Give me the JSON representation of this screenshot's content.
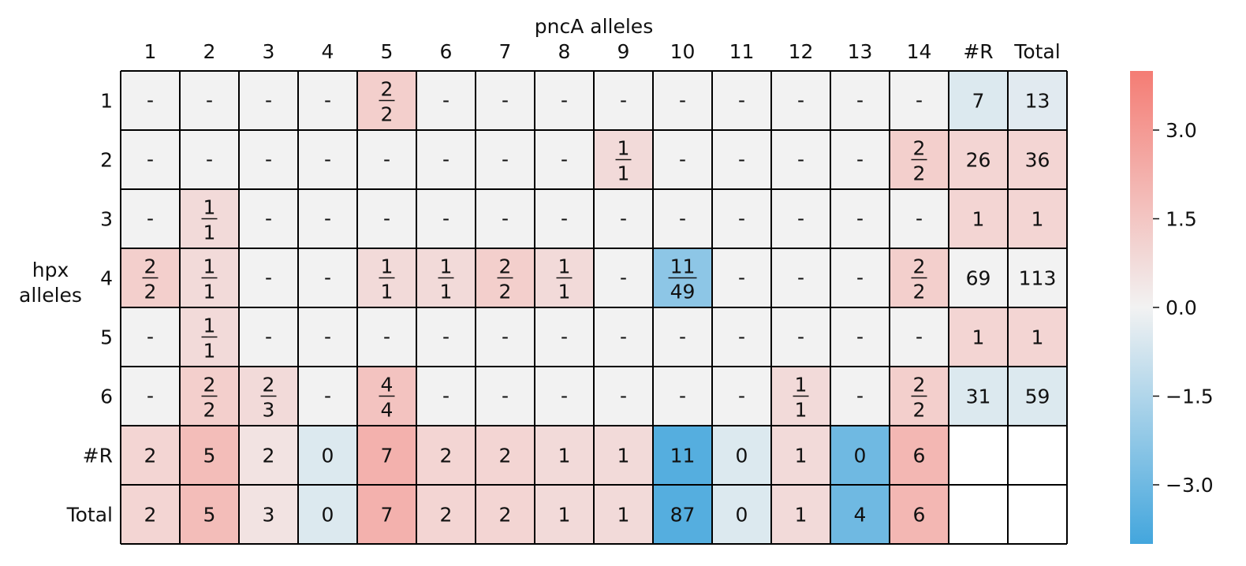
{
  "chart_data": {
    "type": "heatmap",
    "title": "",
    "xlabel": "pncA alleles",
    "ylabel": "hpx\nalleles",
    "col_labels": [
      "1",
      "2",
      "3",
      "4",
      "5",
      "6",
      "7",
      "8",
      "9",
      "10",
      "11",
      "12",
      "13",
      "14",
      "#R",
      "Total"
    ],
    "row_labels": [
      "1",
      "2",
      "3",
      "4",
      "5",
      "6",
      "#R",
      "Total"
    ],
    "empty_symbol": "-",
    "cells": [
      [
        null,
        null,
        null,
        null,
        [
          2,
          2
        ],
        null,
        null,
        null,
        null,
        null,
        null,
        null,
        null,
        null,
        7,
        13
      ],
      [
        null,
        null,
        null,
        null,
        null,
        null,
        null,
        null,
        [
          1,
          1
        ],
        null,
        null,
        null,
        null,
        [
          2,
          2
        ],
        26,
        36
      ],
      [
        null,
        [
          1,
          1
        ],
        null,
        null,
        null,
        null,
        null,
        null,
        null,
        null,
        null,
        null,
        null,
        null,
        1,
        1
      ],
      [
        [
          2,
          2
        ],
        [
          1,
          1
        ],
        null,
        null,
        [
          1,
          1
        ],
        [
          1,
          1
        ],
        [
          2,
          2
        ],
        [
          1,
          1
        ],
        null,
        [
          11,
          49
        ],
        null,
        null,
        null,
        [
          2,
          2
        ],
        69,
        113
      ],
      [
        null,
        [
          1,
          1
        ],
        null,
        null,
        null,
        null,
        null,
        null,
        null,
        null,
        null,
        null,
        null,
        null,
        1,
        1
      ],
      [
        null,
        [
          2,
          2
        ],
        [
          2,
          3
        ],
        null,
        [
          4,
          4
        ],
        null,
        null,
        null,
        null,
        null,
        null,
        [
          1,
          1
        ],
        null,
        [
          2,
          2
        ],
        31,
        59
      ],
      [
        2,
        5,
        2,
        0,
        7,
        2,
        2,
        1,
        1,
        11,
        0,
        1,
        0,
        6,
        null,
        null
      ],
      [
        2,
        5,
        3,
        0,
        7,
        2,
        2,
        1,
        1,
        87,
        0,
        1,
        4,
        6,
        null,
        null
      ]
    ],
    "colorbar": {
      "min": -4.0,
      "max": 4.0,
      "ticks": [
        3.0,
        1.5,
        0.0,
        -1.5,
        -3.0
      ],
      "tick_labels": [
        "3.0",
        "1.5",
        "0.0",
        "−1.5",
        "−3.0"
      ],
      "colors": {
        "negative": "#43a6dd",
        "neutral": "#f2f2f2",
        "positive": "#f47c74"
      }
    },
    "cell_scores": [
      [
        0,
        0,
        0,
        0,
        1.2,
        0,
        0,
        0,
        0,
        0,
        0,
        0,
        0,
        0,
        -0.5,
        -0.4
      ],
      [
        0,
        0,
        0,
        0,
        0,
        0,
        0,
        0,
        0.8,
        0,
        0,
        0,
        0,
        1.2,
        1.0,
        1.0
      ],
      [
        0,
        0.8,
        0,
        0,
        0,
        0,
        0,
        0,
        0,
        0,
        0,
        0,
        0,
        0,
        1.0,
        1.0
      ],
      [
        1.2,
        0.8,
        0,
        0,
        0.8,
        0.8,
        1.2,
        0.8,
        0,
        -2.3,
        0,
        0,
        0,
        1.2,
        0,
        0
      ],
      [
        0,
        0.8,
        0,
        0,
        0,
        0,
        0,
        0,
        0,
        0,
        0,
        0,
        0,
        0,
        1.0,
        1.0
      ],
      [
        0,
        1.2,
        0.8,
        0,
        1.6,
        0,
        0,
        0,
        0,
        0,
        0,
        0.8,
        0,
        1.2,
        -0.5,
        -0.5
      ],
      [
        1.0,
        1.8,
        0.5,
        -0.5,
        2.2,
        1.0,
        1.0,
        0.8,
        0.8,
        -3.6,
        -0.5,
        0.8,
        -3.0,
        2.0,
        null,
        null
      ],
      [
        1.0,
        1.8,
        0.5,
        -0.5,
        2.2,
        1.0,
        1.0,
        0.8,
        0.8,
        -3.6,
        -0.5,
        0.8,
        -3.0,
        2.0,
        null,
        null
      ]
    ]
  }
}
